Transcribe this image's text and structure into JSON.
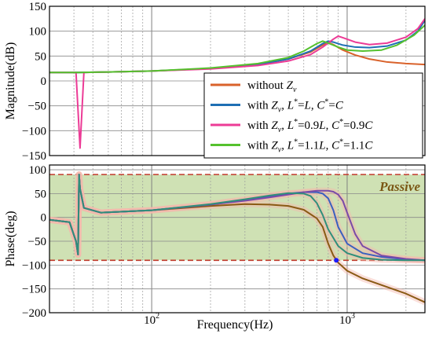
{
  "figure": {
    "xlabel": "Frequency(Hz)",
    "x_tick_labels": [
      {
        "value": 100,
        "base": "10",
        "exp": "2"
      },
      {
        "value": 1000,
        "base": "10",
        "exp": "3"
      }
    ]
  },
  "chart_data": [
    {
      "type": "line",
      "panel": "magnitude",
      "ylabel": "Magnitude(dB)",
      "xscale": "log",
      "xlim": [
        30,
        2500
      ],
      "ylim": [
        -150,
        150
      ],
      "yticks": [
        -150,
        -100,
        -50,
        0,
        50,
        100,
        150
      ],
      "ytick_labels": [
        "−150",
        "−100",
        "−50",
        "0",
        "50",
        "100",
        "150"
      ],
      "grid": true,
      "legend_position": "bottom-right",
      "legend": [
        {
          "key": "without",
          "color": "#d9622b",
          "parts": [
            [
              "without ",
              "n"
            ],
            [
              "Z",
              "i"
            ],
            [
              "v",
              "sub"
            ]
          ]
        },
        {
          "key": "with_nominal",
          "color": "#1f6fb4",
          "parts": [
            [
              "with ",
              "n"
            ],
            [
              "Z",
              "i"
            ],
            [
              "v",
              "sub"
            ],
            [
              ", ",
              "n"
            ],
            [
              "L",
              "i"
            ],
            [
              "*",
              "sup"
            ],
            [
              "=",
              "n"
            ],
            [
              "L",
              "i"
            ],
            [
              ", ",
              "n"
            ],
            [
              "C",
              "i"
            ],
            [
              "*",
              "sup"
            ],
            [
              "=",
              "n"
            ],
            [
              "C",
              "i"
            ]
          ]
        },
        {
          "key": "with_0_9",
          "color": "#ec3b96",
          "parts": [
            [
              "with ",
              "n"
            ],
            [
              "Z",
              "i"
            ],
            [
              "v",
              "sub"
            ],
            [
              ", ",
              "n"
            ],
            [
              "L",
              "i"
            ],
            [
              "*",
              "sup"
            ],
            [
              "=0.9",
              "n"
            ],
            [
              "L",
              "i"
            ],
            [
              ", ",
              "n"
            ],
            [
              "C",
              "i"
            ],
            [
              "*",
              "sup"
            ],
            [
              "=0.9",
              "n"
            ],
            [
              "C",
              "i"
            ]
          ]
        },
        {
          "key": "with_1_1",
          "color": "#55c12e",
          "parts": [
            [
              "with ",
              "n"
            ],
            [
              "Z",
              "i"
            ],
            [
              "v",
              "sub"
            ],
            [
              ", ",
              "n"
            ],
            [
              "L",
              "i"
            ],
            [
              "*",
              "sup"
            ],
            [
              "=1.1",
              "n"
            ],
            [
              "L",
              "i"
            ],
            [
              ", ",
              "n"
            ],
            [
              "C",
              "i"
            ],
            [
              "*",
              "sup"
            ],
            [
              "=1.1",
              "n"
            ],
            [
              "C",
              "i"
            ]
          ]
        }
      ],
      "series": [
        {
          "key": "without",
          "color": "#d9622b",
          "x": [
            30,
            42,
            60,
            100,
            200,
            350,
            500,
            650,
            750,
            800,
            850,
            950,
            1100,
            1300,
            1600,
            2000,
            2500
          ],
          "y": [
            17,
            17,
            18,
            20,
            25,
            33,
            44,
            58,
            72,
            77,
            73,
            62,
            52,
            44,
            38,
            35,
            33
          ]
        },
        {
          "key": "with_nominal",
          "color": "#1f6fb4",
          "x": [
            30,
            42,
            60,
            100,
            200,
            350,
            500,
            650,
            750,
            800,
            850,
            950,
            1100,
            1300,
            1600,
            2000,
            2300,
            2500
          ],
          "y": [
            17,
            17,
            18,
            20,
            25,
            33,
            44,
            60,
            75,
            80,
            78,
            72,
            68,
            67,
            70,
            82,
            100,
            122
          ]
        },
        {
          "key": "with_0_9",
          "color": "#ec3b96",
          "x": [
            30,
            41,
            43,
            45,
            60,
            100,
            200,
            350,
            500,
            650,
            750,
            850,
            900,
            950,
            1100,
            1300,
            1600,
            2000,
            2300,
            2500
          ],
          "y": [
            17,
            17,
            -135,
            17,
            18,
            20,
            24,
            31,
            40,
            53,
            68,
            84,
            90,
            87,
            78,
            73,
            76,
            88,
            105,
            125
          ]
        },
        {
          "key": "with_1_1",
          "color": "#55c12e",
          "x": [
            30,
            42,
            60,
            100,
            200,
            350,
            500,
            600,
            700,
            750,
            800,
            900,
            1000,
            1200,
            1500,
            1800,
            2200,
            2500
          ],
          "y": [
            17,
            17,
            18,
            20,
            26,
            35,
            47,
            60,
            75,
            80,
            76,
            68,
            62,
            60,
            62,
            72,
            92,
            112
          ]
        }
      ]
    },
    {
      "type": "line",
      "panel": "phase",
      "ylabel": "Phase(deg)",
      "xscale": "log",
      "xlim": [
        30,
        2500
      ],
      "ylim": [
        -200,
        110
      ],
      "yticks": [
        -200,
        -150,
        -100,
        -50,
        0,
        50,
        100
      ],
      "ytick_labels": [
        "−200",
        "−150",
        "−100",
        "−50",
        "0",
        "50",
        "100"
      ],
      "grid": true,
      "passive_band": {
        "label": "Passive",
        "ymin": -90,
        "ymax": 90,
        "color": "#cfe1b4"
      },
      "reference_lines": [
        90,
        -90
      ],
      "reference_color": "#c0392b",
      "marker": {
        "x": 880,
        "y": -90,
        "color": "#1a1aff"
      },
      "series": [
        {
          "key": "without",
          "color": "#8a5a14",
          "x": [
            30,
            38,
            41,
            42,
            42.5,
            43,
            45,
            55,
            100,
            200,
            300,
            400,
            500,
            600,
            700,
            750,
            800,
            850,
            900,
            1000,
            1200,
            1500,
            2000,
            2500
          ],
          "y": [
            -5,
            -10,
            -50,
            -78,
            90,
            60,
            20,
            10,
            15,
            24,
            28,
            27,
            24,
            16,
            -2,
            -20,
            -55,
            -80,
            -95,
            -112,
            -128,
            -142,
            -160,
            -178
          ]
        },
        {
          "key": "with_nominal",
          "color": "#3a5fbf",
          "x": [
            30,
            38,
            41,
            42,
            42.5,
            43,
            45,
            55,
            100,
            200,
            300,
            400,
            500,
            600,
            700,
            750,
            800,
            850,
            900,
            1000,
            1200,
            1500,
            2000,
            2500
          ],
          "y": [
            -5,
            -10,
            -50,
            -78,
            90,
            60,
            20,
            10,
            15,
            27,
            36,
            44,
            50,
            53,
            53,
            50,
            40,
            15,
            -20,
            -55,
            -75,
            -83,
            -88,
            -90
          ]
        },
        {
          "key": "with_0_9",
          "color": "#7a4aa8",
          "x": [
            30,
            38,
            41,
            42,
            42.5,
            43,
            45,
            55,
            100,
            200,
            300,
            400,
            500,
            600,
            700,
            800,
            850,
            900,
            950,
            1000,
            1100,
            1200,
            1500,
            2000,
            2500
          ],
          "y": [
            -5,
            -10,
            -50,
            -78,
            90,
            60,
            20,
            10,
            15,
            27,
            35,
            42,
            48,
            53,
            56,
            56,
            54,
            48,
            35,
            10,
            -35,
            -60,
            -80,
            -87,
            -90
          ]
        },
        {
          "key": "with_1_1",
          "color": "#2f8f7a",
          "x": [
            30,
            38,
            41,
            42,
            42.5,
            43,
            45,
            55,
            100,
            200,
            300,
            400,
            500,
            600,
            650,
            700,
            750,
            800,
            900,
            1000,
            1200,
            1500,
            2000,
            2500
          ],
          "y": [
            -5,
            -10,
            -50,
            -78,
            90,
            60,
            20,
            10,
            15,
            28,
            38,
            46,
            51,
            50,
            45,
            30,
            5,
            -25,
            -60,
            -75,
            -85,
            -89,
            -90,
            -90
          ]
        }
      ]
    }
  ]
}
